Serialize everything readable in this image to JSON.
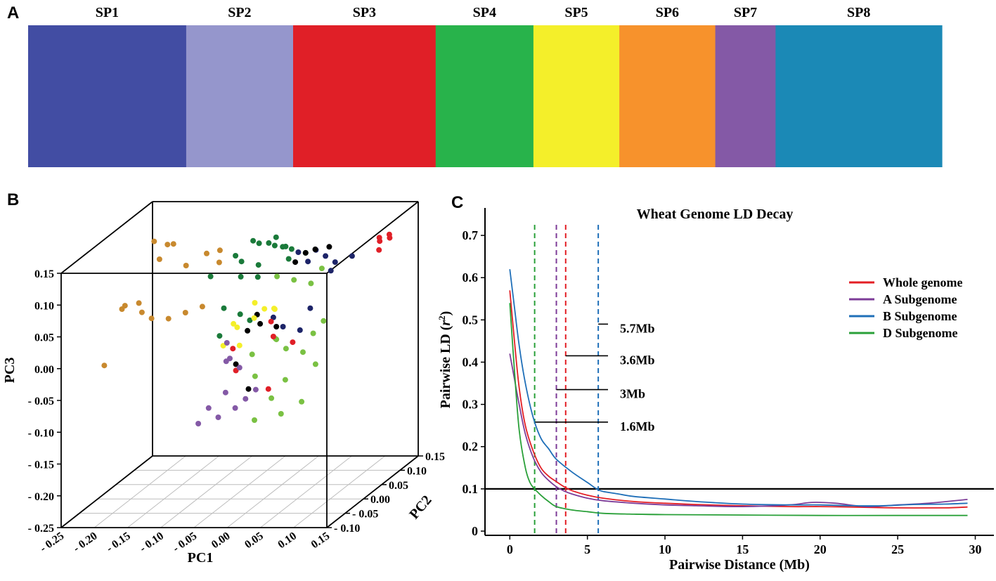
{
  "panel_labels": {
    "a": "A",
    "b": "B",
    "c": "C"
  },
  "chart_data": [
    {
      "type": "bar",
      "name": "structure",
      "panel": "A",
      "title": "",
      "categories": [
        "SP1",
        "SP2",
        "SP3",
        "SP4",
        "SP5",
        "SP6",
        "SP7",
        "SP8"
      ],
      "colors": [
        "#424da3",
        "#9596cc",
        "#e01f27",
        "#28b34b",
        "#f4ef2a",
        "#f7922c",
        "#8459a6",
        "#1b89b6"
      ],
      "share": [
        0.173,
        0.117,
        0.156,
        0.107,
        0.094,
        0.105,
        0.066,
        0.182
      ],
      "ylim": [
        0,
        1
      ]
    },
    {
      "type": "scatter",
      "name": "pca3d",
      "panel": "B",
      "xlabel": "PC1",
      "ylabel": "PC2",
      "zlabel": "PC3",
      "x_ticks": [
        "- 0.25",
        "- 0.20",
        "- 0.15",
        "- 0.10",
        "- 0.05",
        "0.00",
        "0.05",
        "0.10",
        "0.15"
      ],
      "y_ticks": [
        "- 0.10",
        "- 0.05",
        "0.00",
        "0.05",
        "0.10",
        "0.15"
      ],
      "z_ticks": [
        "0.15",
        "0.10",
        "0.05",
        "0.00",
        "- 0.05",
        "- 0.10",
        "- 0.15",
        "- 0.20",
        "- 0.25"
      ],
      "xlim": [
        -0.25,
        0.15
      ],
      "ylim": [
        -0.1,
        0.15
      ],
      "zlim": [
        -0.25,
        0.15
      ],
      "groups": [
        {
          "color": "#c8892e",
          "points": [
            [
              -0.22,
              0.1,
              0.11
            ],
            [
              -0.2,
              0.1,
              0.105
            ],
            [
              -0.18,
              0.08,
              0.115
            ],
            [
              -0.19,
              0.06,
              0.1
            ],
            [
              -0.21,
              0.04,
              0.04
            ],
            [
              -0.23,
              0.03,
              0.035
            ],
            [
              -0.22,
              0.02,
              0.045
            ],
            [
              -0.2,
              0.03,
              0.03
            ],
            [
              -0.18,
              0.02,
              0.025
            ],
            [
              -0.16,
              0.03,
              0.02
            ],
            [
              -0.14,
              0.04,
              0.025
            ],
            [
              -0.12,
              0.05,
              0.03
            ],
            [
              -0.24,
              0.0,
              -0.04
            ],
            [
              -0.15,
              0.06,
              0.09
            ],
            [
              -0.13,
              0.08,
              0.1
            ],
            [
              -0.1,
              0.06,
              0.095
            ],
            [
              -0.11,
              0.08,
              0.105
            ]
          ]
        },
        {
          "color": "#1a7a3a",
          "points": [
            [
              -0.06,
              0.08,
              0.12
            ],
            [
              -0.04,
              0.06,
              0.125
            ],
            [
              -0.02,
              0.05,
              0.13
            ],
            [
              -0.01,
              0.07,
              0.115
            ],
            [
              0.0,
              0.06,
              0.12
            ],
            [
              -0.03,
              0.04,
              0.1
            ],
            [
              -0.05,
              0.03,
              0.11
            ],
            [
              0.01,
              0.05,
              0.105
            ],
            [
              -0.02,
              0.02,
              0.09
            ],
            [
              0.02,
              0.04,
              0.125
            ],
            [
              -0.04,
              0.01,
              0.095
            ],
            [
              0.0,
              0.03,
              0.135
            ],
            [
              -0.06,
              0.0,
              0.05
            ],
            [
              -0.03,
              -0.01,
              0.045
            ],
            [
              -0.01,
              -0.02,
              0.04
            ],
            [
              -0.05,
              -0.03,
              0.02
            ],
            [
              -0.08,
              0.0,
              0.1
            ],
            [
              -0.07,
              0.05,
              0.11
            ],
            [
              0.03,
              0.06,
              0.11
            ],
            [
              -0.02,
              0.07,
              0.13
            ]
          ]
        },
        {
          "color": "#7ac143",
          "points": [
            [
              0.02,
              0.0,
              0.1
            ],
            [
              0.04,
              0.01,
              0.09
            ],
            [
              0.06,
              0.02,
              0.08
            ],
            [
              0.03,
              -0.02,
              0.01
            ],
            [
              0.05,
              -0.03,
              0.0
            ],
            [
              0.07,
              -0.02,
              -0.01
            ],
            [
              0.04,
              -0.04,
              0.02
            ],
            [
              0.08,
              -0.01,
              0.015
            ],
            [
              0.02,
              -0.06,
              -0.03
            ],
            [
              0.05,
              -0.07,
              -0.06
            ],
            [
              0.07,
              -0.08,
              -0.08
            ],
            [
              0.09,
              -0.06,
              -0.07
            ],
            [
              0.06,
              -0.05,
              -0.04
            ],
            [
              0.1,
              -0.04,
              -0.02
            ],
            [
              0.03,
              -0.08,
              -0.09
            ],
            [
              0.01,
              -0.05,
              0.0
            ],
            [
              0.09,
              0.0,
              0.03
            ],
            [
              0.06,
              0.05,
              0.09
            ]
          ]
        },
        {
          "color": "#1d2468",
          "points": [
            [
              0.04,
              0.07,
              0.11
            ],
            [
              0.06,
              0.06,
              0.105
            ],
            [
              0.08,
              0.05,
              0.1
            ],
            [
              0.1,
              0.06,
              0.105
            ],
            [
              0.03,
              0.04,
              0.12
            ],
            [
              0.05,
              0.03,
              0.11
            ],
            [
              0.07,
              0.0,
              0.05
            ],
            [
              0.02,
              -0.01,
              0.04
            ],
            [
              0.04,
              -0.02,
              0.03
            ],
            [
              0.06,
              -0.01,
              0.02
            ],
            [
              0.09,
              0.02,
              0.1
            ]
          ]
        },
        {
          "color": "#000000",
          "points": [
            [
              0.03,
              0.06,
              0.11
            ],
            [
              0.05,
              0.05,
              0.12
            ],
            [
              0.06,
              0.07,
              0.115
            ],
            [
              0.02,
              0.05,
              0.1
            ],
            [
              -0.01,
              0.0,
              0.04
            ],
            [
              0.0,
              -0.01,
              0.03
            ],
            [
              -0.02,
              -0.04,
              -0.02
            ],
            [
              0.01,
              -0.06,
              -0.05
            ],
            [
              0.03,
              -0.02,
              0.03
            ],
            [
              -0.03,
              0.01,
              0.01
            ]
          ]
        },
        {
          "color": "#e01f27",
          "points": [
            [
              0.13,
              0.08,
              0.125
            ],
            [
              0.14,
              0.09,
              0.12
            ],
            [
              0.135,
              0.07,
              0.11
            ],
            [
              0.145,
              0.08,
              0.13
            ],
            [
              0.125,
              0.09,
              0.115
            ],
            [
              0.0,
              0.02,
              0.02
            ],
            [
              0.02,
              -0.01,
              0.01
            ],
            [
              -0.02,
              -0.04,
              -0.03
            ],
            [
              0.04,
              -0.06,
              -0.05
            ],
            [
              -0.03,
              -0.03,
              0.0
            ],
            [
              0.06,
              -0.03,
              0.01
            ]
          ]
        },
        {
          "color": "#f4ef2a",
          "points": [
            [
              -0.03,
              0.03,
              0.045
            ],
            [
              -0.01,
              0.02,
              0.04
            ],
            [
              0.0,
              0.03,
              0.035
            ],
            [
              -0.02,
              0.01,
              0.03
            ],
            [
              -0.04,
              0.0,
              0.02
            ],
            [
              0.01,
              0.01,
              0.045
            ],
            [
              -0.05,
              -0.02,
              0.0
            ],
            [
              -0.02,
              -0.03,
              0.005
            ],
            [
              -0.04,
              -0.01,
              0.03
            ]
          ]
        },
        {
          "color": "#8459a6",
          "points": [
            [
              -0.04,
              -0.02,
              -0.02
            ],
            [
              -0.02,
              -0.03,
              -0.03
            ],
            [
              -0.03,
              -0.05,
              -0.06
            ],
            [
              -0.05,
              -0.06,
              -0.08
            ],
            [
              -0.06,
              -0.07,
              -0.1
            ],
            [
              -0.03,
              -0.07,
              -0.09
            ],
            [
              0.0,
              -0.05,
              -0.07
            ],
            [
              -0.04,
              -0.03,
              -0.02
            ],
            [
              -0.01,
              -0.06,
              -0.08
            ],
            [
              0.01,
              -0.04,
              -0.06
            ],
            [
              -0.05,
              -0.01,
              0.0
            ]
          ]
        }
      ]
    },
    {
      "type": "line",
      "name": "ld",
      "panel": "C",
      "title": "Wheat Genome LD Decay",
      "xlabel": "Pairwise Distance (Mb)",
      "ylabel_main": "Pairwise LD (",
      "ylabel_var": "r",
      "ylabel_sup": "2",
      "ylabel_end": ")",
      "xlim": [
        -1.6,
        31.2
      ],
      "ylim": [
        -0.01,
        0.765
      ],
      "x_ticks": [
        0,
        5,
        10,
        15,
        20,
        25,
        30
      ],
      "y_ticks": [
        0,
        0.1,
        0.2,
        0.3,
        0.4,
        0.5,
        0.6,
        0.7
      ],
      "x_tick_labels": [
        "0",
        "5",
        "10",
        "15",
        "20",
        "25",
        "30"
      ],
      "y_tick_labels": [
        "0",
        "0.1",
        "0.2",
        "0.3",
        "0.4",
        "0.5",
        "0.6",
        "0.7"
      ],
      "threshold": 0.1,
      "series": [
        {
          "name": "Whole genome",
          "color": "#e31e24",
          "x": [
            0,
            0.3,
            0.6,
            1,
            1.5,
            2,
            2.5,
            3,
            3.5,
            4,
            5,
            6,
            8,
            10,
            12,
            15,
            18,
            20,
            22,
            25,
            28,
            29.5
          ],
          "y": [
            0.57,
            0.45,
            0.34,
            0.25,
            0.19,
            0.15,
            0.13,
            0.117,
            0.105,
            0.096,
            0.085,
            0.078,
            0.07,
            0.066,
            0.063,
            0.06,
            0.058,
            0.058,
            0.057,
            0.055,
            0.055,
            0.057
          ]
        },
        {
          "name": "A Subgenome",
          "color": "#7d3c98",
          "x": [
            0,
            0.3,
            0.6,
            1,
            1.5,
            2,
            2.5,
            3,
            3.5,
            4,
            5,
            6,
            8,
            10,
            12,
            15,
            18,
            19.5,
            21,
            23,
            25,
            27,
            29.5
          ],
          "y": [
            0.42,
            0.36,
            0.3,
            0.23,
            0.175,
            0.14,
            0.12,
            0.105,
            0.095,
            0.088,
            0.078,
            0.072,
            0.066,
            0.062,
            0.06,
            0.058,
            0.062,
            0.068,
            0.066,
            0.058,
            0.062,
            0.066,
            0.075
          ]
        },
        {
          "name": "B Subgenome",
          "color": "#1f6fb8",
          "x": [
            0,
            0.3,
            0.6,
            1,
            1.5,
            2,
            2.5,
            3,
            4,
            5,
            5.6,
            6,
            7,
            8,
            10,
            12,
            15,
            18,
            20,
            22,
            24,
            26,
            28,
            29.5
          ],
          "y": [
            0.62,
            0.53,
            0.44,
            0.35,
            0.27,
            0.22,
            0.195,
            0.17,
            0.14,
            0.115,
            0.1,
            0.094,
            0.088,
            0.082,
            0.076,
            0.07,
            0.064,
            0.062,
            0.062,
            0.06,
            0.06,
            0.063,
            0.064,
            0.066
          ]
        },
        {
          "name": "D Subgenome",
          "color": "#2aa039",
          "x": [
            0,
            0.3,
            0.6,
            1,
            1.3,
            1.6,
            2,
            2.5,
            3,
            4,
            5,
            6,
            8,
            10,
            15,
            20,
            25,
            29.5
          ],
          "y": [
            0.54,
            0.38,
            0.24,
            0.15,
            0.115,
            0.1,
            0.085,
            0.07,
            0.058,
            0.05,
            0.046,
            0.042,
            0.04,
            0.039,
            0.038,
            0.037,
            0.037,
            0.037
          ]
        }
      ],
      "markers": [
        {
          "label": "5.7Mb",
          "x": 5.7,
          "color": "#1f6fb8",
          "level": 0.49
        },
        {
          "label": "3.6Mb",
          "x": 3.6,
          "color": "#e31e24",
          "level": 0.415
        },
        {
          "label": "3Mb",
          "x": 3.0,
          "color": "#7d3c98",
          "level": 0.335
        },
        {
          "label": "1.6Mb",
          "x": 1.6,
          "color": "#2aa039",
          "level": 0.258
        }
      ]
    }
  ]
}
